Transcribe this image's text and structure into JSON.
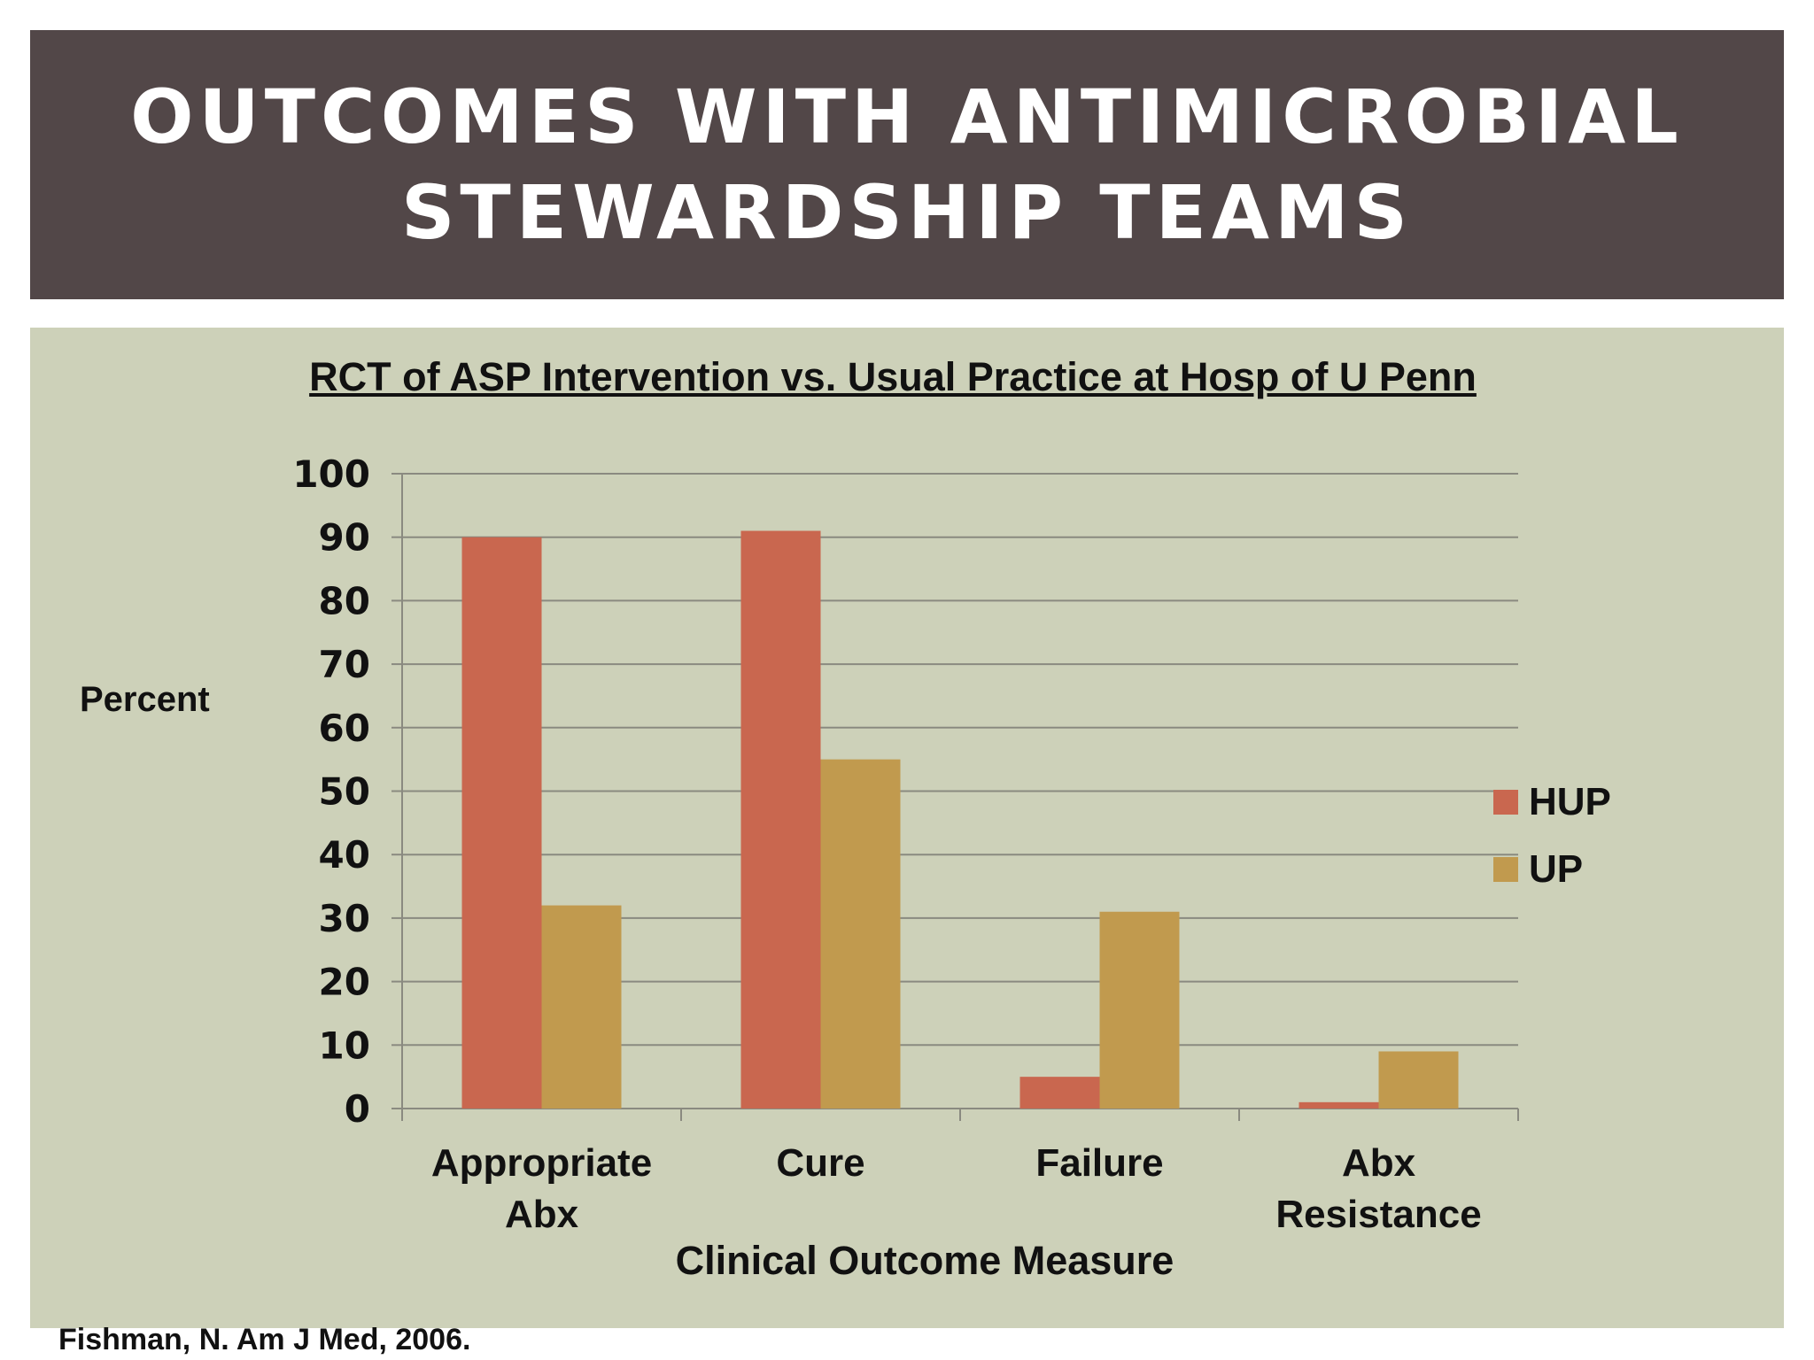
{
  "slide": {
    "title_lines": [
      "OUTCOMES WITH ANTIMICROBIAL",
      "STEWARDSHIP TEAMS"
    ],
    "citation": "Fishman, N. Am J Med, 2006."
  },
  "chart_data": {
    "type": "bar",
    "title": "RCT of ASP Intervention vs. Usual Practice at Hosp of U Penn",
    "xlabel": "Clinical Outcome Measure",
    "ylabel": "Percent",
    "ylim": [
      0,
      100
    ],
    "yticks": [
      0,
      10,
      20,
      30,
      40,
      50,
      60,
      70,
      80,
      90,
      100
    ],
    "grid": true,
    "legend_position": "right",
    "categories": [
      [
        "Appropriate",
        "Abx"
      ],
      [
        "Cure"
      ],
      [
        "Failure"
      ],
      [
        "Abx",
        "Resistance"
      ]
    ],
    "series": [
      {
        "name": "HUP",
        "color": "#c9674f",
        "values": [
          90,
          91,
          5,
          1
        ]
      },
      {
        "name": "UP",
        "color": "#c19a4e",
        "values": [
          32,
          55,
          31,
          9
        ]
      }
    ]
  }
}
